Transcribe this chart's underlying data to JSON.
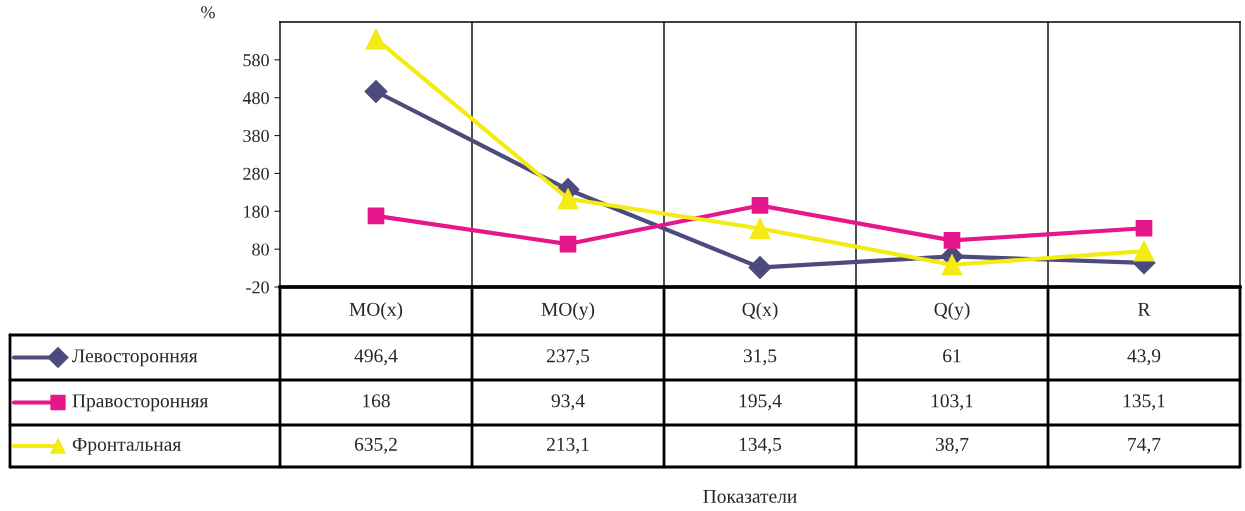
{
  "chart_data": {
    "type": "line",
    "ylabel": "%",
    "annotations": [
      "Показатели"
    ],
    "categories": [
      "MO(x)",
      "MO(y)",
      "Q(x)",
      "Q(y)",
      "R"
    ],
    "series": [
      {
        "name": "Левосторонняя",
        "color": "#4b4b7d",
        "marker": "diamond",
        "values": [
          496.4,
          237.5,
          31.5,
          61,
          43.9
        ],
        "value_labels": [
          "496,4",
          "237,5",
          "31,5",
          "61",
          "43,9"
        ]
      },
      {
        "name": "Правосторонняя",
        "color": "#e6168c",
        "marker": "square",
        "values": [
          168,
          93.4,
          195.4,
          103.1,
          135.1
        ],
        "value_labels": [
          "168",
          "93,4",
          "195,4",
          "103,1",
          "135,1"
        ]
      },
      {
        "name": "Фронтальная",
        "color": "#f5eb14",
        "marker": "triangle",
        "values": [
          635.2,
          213.1,
          134.5,
          38.7,
          74.7
        ],
        "value_labels": [
          "635,2",
          "213,1",
          "134,5",
          "38,7",
          "74,7"
        ]
      }
    ],
    "ylim": [
      -20,
      680
    ],
    "yticks": [
      -20,
      80,
      180,
      280,
      380,
      480,
      580
    ],
    "grid": "x",
    "legend": "left",
    "tick_labels": "y",
    "line_style": "solid"
  }
}
